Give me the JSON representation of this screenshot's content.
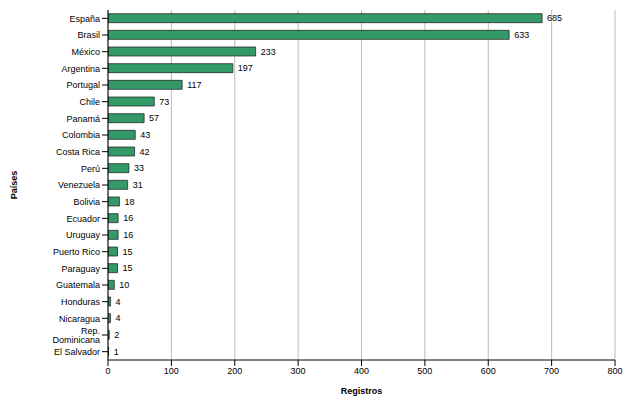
{
  "chart_data": {
    "type": "bar",
    "orientation": "horizontal",
    "x_label": "Registros",
    "y_label": "Países",
    "categories": [
      "España",
      "Brasil",
      "México",
      "Argentina",
      "Portugal",
      "Chile",
      "Panamá",
      "Colombia",
      "Costa Rica",
      "Perú",
      "Venezuela",
      "Bolivia",
      "Ecuador",
      "Uruguay",
      "Puerto Rico",
      "Paraguay",
      "Guatemala",
      "Honduras",
      "Nicaragua",
      "Rep. Dominicana",
      "El Salvador"
    ],
    "values": [
      685,
      633,
      233,
      197,
      117,
      73,
      57,
      43,
      42,
      33,
      31,
      18,
      16,
      16,
      15,
      15,
      10,
      4,
      4,
      2,
      1
    ],
    "color": "#339966",
    "xlim": [
      0,
      800
    ],
    "xticks": [
      0,
      100,
      200,
      300,
      400,
      500,
      600,
      700,
      800
    ],
    "grid": true,
    "data_labels": true
  }
}
